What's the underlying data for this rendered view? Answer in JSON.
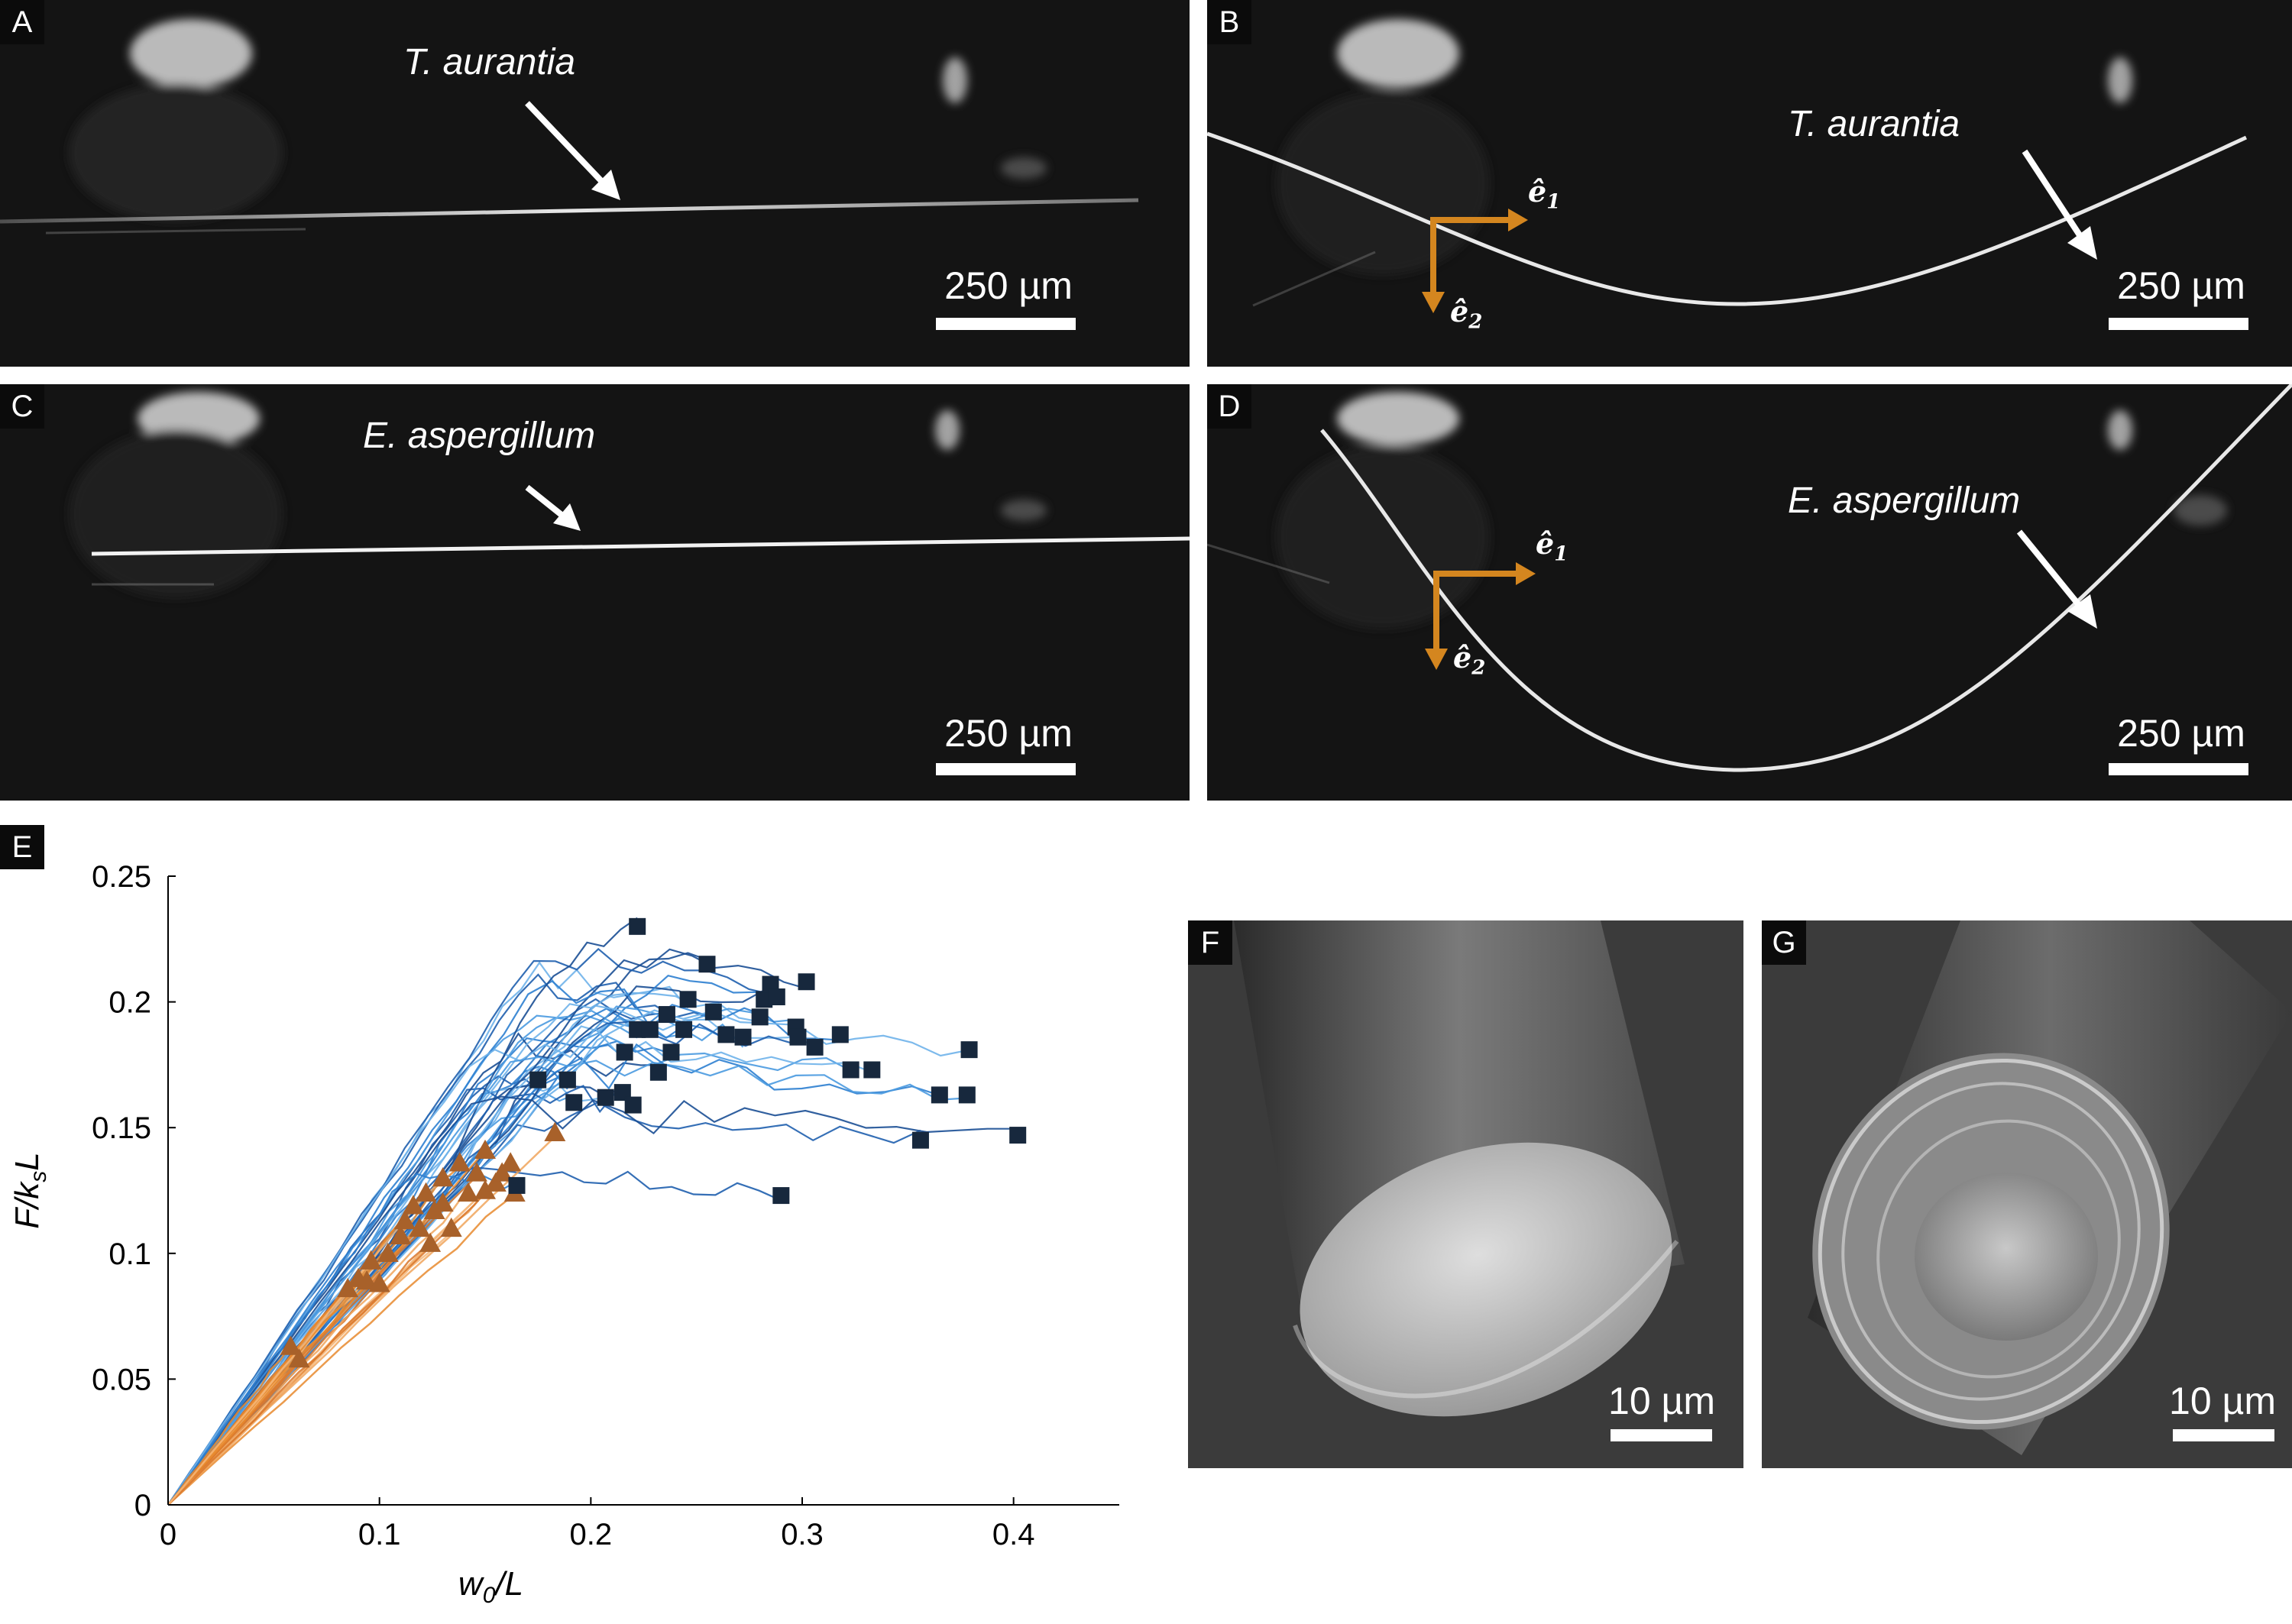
{
  "panels": {
    "A": {
      "label": "A",
      "species": "T. aurantia",
      "scalebar": "250 µm"
    },
    "B": {
      "label": "B",
      "species": "T. aurantia",
      "scalebar": "250 µm",
      "e1": "ê",
      "e1_sub": "1",
      "e2": "ê",
      "e2_sub": "2"
    },
    "C": {
      "label": "C",
      "species": "E. aspergillum",
      "scalebar": "250 µm"
    },
    "D": {
      "label": "D",
      "species": "E. aspergillum",
      "scalebar": "250 µm",
      "e1": "ê",
      "e1_sub": "1",
      "e2": "ê",
      "e2_sub": "2"
    },
    "E": {
      "label": "E"
    },
    "F": {
      "label": "F",
      "scalebar": "10 µm"
    },
    "G": {
      "label": "G",
      "scalebar": "10 µm"
    }
  },
  "colors": {
    "axis_arrow": "#d4861f",
    "blue_series": "#2e7fd0",
    "orange_series": "#e8892e",
    "square_marker": "#17283d",
    "triangle_marker": "#a8612a"
  },
  "chart_data": {
    "type": "scatter",
    "ylabel_main": "F/k",
    "ylabel_sub": "s",
    "ylabel_tail": "L",
    "xlabel_main": "w",
    "xlabel_sub": "0",
    "xlabel_tail": "/L",
    "xlim": [
      0,
      0.45
    ],
    "ylim": [
      0,
      0.25
    ],
    "xticks": [
      0,
      0.1,
      0.2,
      0.3,
      0.4
    ],
    "xtick_labels": [
      "0",
      "0.1",
      "0.2",
      "0.3",
      "0.4"
    ],
    "yticks": [
      0,
      0.05,
      0.1,
      0.15,
      0.2,
      0.25
    ],
    "ytick_labels": [
      "0",
      "0.05",
      "0.1",
      "0.15",
      "0.2",
      "0.25"
    ],
    "grid": false,
    "series": [
      {
        "marker": "square",
        "values": [
          [
            0.175,
            0.169
          ],
          [
            0.189,
            0.169
          ],
          [
            0.192,
            0.16
          ],
          [
            0.207,
            0.162
          ],
          [
            0.215,
            0.164
          ],
          [
            0.22,
            0.159
          ],
          [
            0.216,
            0.18
          ],
          [
            0.222,
            0.189
          ],
          [
            0.228,
            0.189
          ],
          [
            0.232,
            0.172
          ],
          [
            0.236,
            0.195
          ],
          [
            0.238,
            0.18
          ],
          [
            0.244,
            0.189
          ],
          [
            0.246,
            0.201
          ],
          [
            0.255,
            0.215
          ],
          [
            0.258,
            0.196
          ],
          [
            0.264,
            0.187
          ],
          [
            0.272,
            0.186
          ],
          [
            0.28,
            0.194
          ],
          [
            0.282,
            0.201
          ],
          [
            0.285,
            0.207
          ],
          [
            0.288,
            0.202
          ],
          [
            0.297,
            0.19
          ],
          [
            0.298,
            0.186
          ],
          [
            0.302,
            0.208
          ],
          [
            0.306,
            0.182
          ],
          [
            0.318,
            0.187
          ],
          [
            0.323,
            0.173
          ],
          [
            0.333,
            0.173
          ],
          [
            0.222,
            0.23
          ],
          [
            0.356,
            0.145
          ],
          [
            0.365,
            0.163
          ],
          [
            0.378,
            0.163
          ],
          [
            0.379,
            0.181
          ],
          [
            0.402,
            0.147
          ],
          [
            0.29,
            0.123
          ],
          [
            0.165,
            0.127
          ]
        ]
      },
      {
        "marker": "triangle",
        "values": [
          [
            0.058,
            0.063
          ],
          [
            0.062,
            0.058
          ],
          [
            0.085,
            0.086
          ],
          [
            0.09,
            0.09
          ],
          [
            0.094,
            0.089
          ],
          [
            0.096,
            0.097
          ],
          [
            0.1,
            0.088
          ],
          [
            0.104,
            0.1
          ],
          [
            0.11,
            0.107
          ],
          [
            0.112,
            0.113
          ],
          [
            0.116,
            0.119
          ],
          [
            0.119,
            0.11
          ],
          [
            0.122,
            0.124
          ],
          [
            0.126,
            0.117
          ],
          [
            0.13,
            0.12
          ],
          [
            0.134,
            0.11
          ],
          [
            0.138,
            0.136
          ],
          [
            0.142,
            0.124
          ],
          [
            0.146,
            0.132
          ],
          [
            0.15,
            0.125
          ],
          [
            0.15,
            0.141
          ],
          [
            0.155,
            0.128
          ],
          [
            0.158,
            0.132
          ],
          [
            0.162,
            0.136
          ],
          [
            0.164,
            0.124
          ],
          [
            0.183,
            0.148
          ],
          [
            0.124,
            0.104
          ],
          [
            0.13,
            0.13
          ]
        ]
      }
    ]
  }
}
